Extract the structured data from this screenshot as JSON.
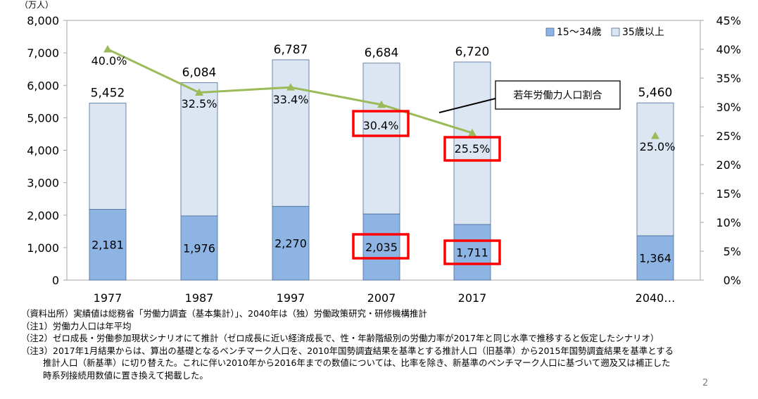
{
  "chart_data": {
    "type": "bar",
    "stacked": true,
    "categories": [
      "1977",
      "1987",
      "1997",
      "2007",
      "2017",
      "2040…"
    ],
    "y_unit": "（万人）",
    "ylim": [
      0,
      8000
    ],
    "y_ticks": [
      "0",
      "1,000",
      "2,000",
      "3,000",
      "4,000",
      "5,000",
      "6,000",
      "7,000",
      "8,000"
    ],
    "y2lim": [
      0,
      45
    ],
    "y2_ticks": [
      "0%",
      "5%",
      "10%",
      "15%",
      "20%",
      "25%",
      "30%",
      "35%",
      "40%",
      "45%"
    ],
    "legend_position": "top-right",
    "grid": false,
    "series": [
      {
        "name": "15～34歳",
        "color": "#8db4e2",
        "values": [
          2181,
          1976,
          2270,
          2035,
          1711,
          1364
        ],
        "labels": [
          "2,181",
          "1,976",
          "2,270",
          "2,035",
          "1,711",
          "1,364"
        ]
      },
      {
        "name": "35歳以上",
        "color": "#dce6f2",
        "values": [
          3271,
          4108,
          4517,
          4649,
          5009,
          4096
        ]
      }
    ],
    "totals": [
      5452,
      6084,
      6787,
      6684,
      6720,
      5460
    ],
    "total_labels": [
      "5,452",
      "6,084",
      "6,787",
      "6,684",
      "6,720",
      "5,460"
    ],
    "line_series": {
      "name": "若年労働力人口割合",
      "axis": "secondary",
      "color": "#9bbb59",
      "values": [
        40.0,
        32.5,
        33.4,
        30.4,
        25.5,
        25.0
      ],
      "labels": [
        "40.0%",
        "32.5%",
        "33.4%",
        "30.4%",
        "25.5%",
        "25.0%"
      ],
      "connected_points": 5
    },
    "callout": "若年労働力人口割合",
    "highlight_color": "#ff0000",
    "highlighted_labels": [
      "30.4%",
      "25.5%",
      "2,035",
      "1,711"
    ]
  },
  "notes": [
    "（資料出所）実績値は総務省「労働力調査（基本集計）」、2040年は（独）労働政策研究・研修機構推計",
    "（注1）労働力人口は年平均",
    "（注2）ゼロ成長・労働参加現状シナリオにて推計（ゼロ成長に近い経済成長で、性・年齢階級別の労働力率が2017年と同じ水準で推移すると仮定したシナリオ）",
    "（注3）2017年1月結果からは、算出の基礎となるベンチマーク人口を、2010年国勢調査結果を基準とする推計人口（旧基準）から2015年国勢調査結果を基準とする",
    "推計人口（新基準）に切り替えた。これに伴い2010年から2016年までの数値については、比率を除き、新基準のベンチマーク人口に基づいて遡及又は補正した",
    "時系列接続用数値に置き換えて掲載した。"
  ],
  "page_number": "2"
}
